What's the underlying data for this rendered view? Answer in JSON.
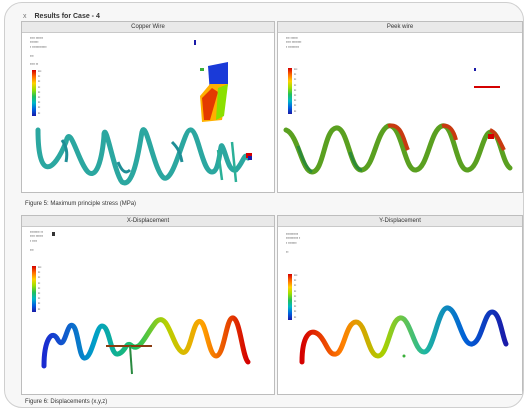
{
  "window": {
    "title": "Results for Case - 4",
    "close_glyph": "x"
  },
  "figure5": {
    "caption": "Figure 5: Maximum principle stress (MPa)",
    "panels": [
      {
        "title": "Copper Wire"
      },
      {
        "title": "Peek wire"
      }
    ]
  },
  "figure6": {
    "caption": "Figure 6: Displacements (x,y,z)",
    "panels": [
      {
        "title": "X-Displacement"
      },
      {
        "title": "Y-Displacement"
      }
    ]
  },
  "colors": {
    "accent_red": "#d40000",
    "accent_blue": "#1a1aa8"
  }
}
